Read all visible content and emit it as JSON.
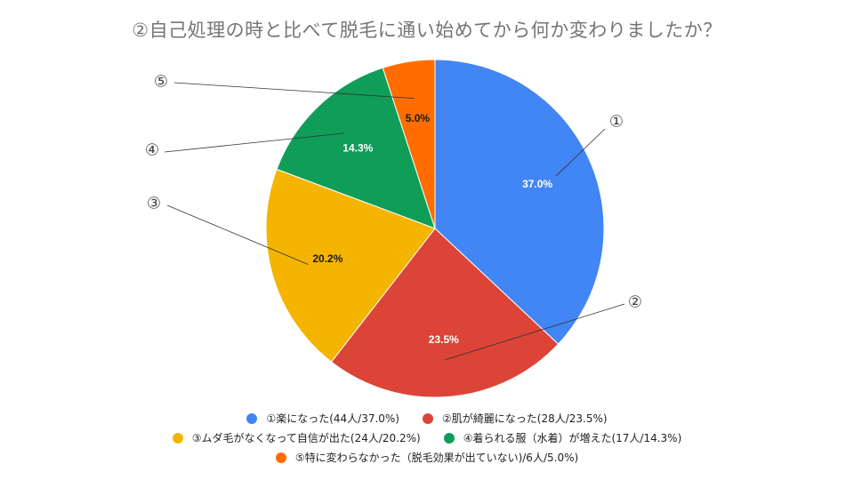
{
  "chart_data": {
    "type": "pie",
    "title": "②自己処理の時と比べて脱毛に通い始めてから何か変わりましたか？",
    "start_angle_deg": 0,
    "direction": "clockwise",
    "legend_position": "bottom",
    "slices": [
      {
        "marker": "①",
        "legend": "①楽になった(44人/37.0%)",
        "count": 44,
        "percent": 37.0,
        "label": "37.0%",
        "color": "#4285F4",
        "label_color": "#ffffff"
      },
      {
        "marker": "②",
        "legend": "②肌が綺麗になった(28人/23.5%)",
        "count": 28,
        "percent": 23.5,
        "label": "23.5%",
        "color": "#DB4437",
        "label_color": "#ffffff"
      },
      {
        "marker": "③",
        "legend": "③ムダ毛がなくなって自信が出た(24人/20.2%)",
        "count": 24,
        "percent": 20.2,
        "label": "20.2%",
        "color": "#F4B400",
        "label_color": "#1a1a1a"
      },
      {
        "marker": "④",
        "legend": "④着られる服（水着）が増えた(17人/14.3%)",
        "count": 17,
        "percent": 14.3,
        "label": "14.3%",
        "color": "#0F9D58",
        "label_color": "#ffffff"
      },
      {
        "marker": "⑤",
        "legend": "⑤特に変わらなかった（脱毛効果が出ていない)/6人/5.0%)",
        "count": 6,
        "percent": 5.0,
        "label": "5.0%",
        "color": "#FF6D01",
        "label_color": "#1a1a1a"
      }
    ]
  }
}
